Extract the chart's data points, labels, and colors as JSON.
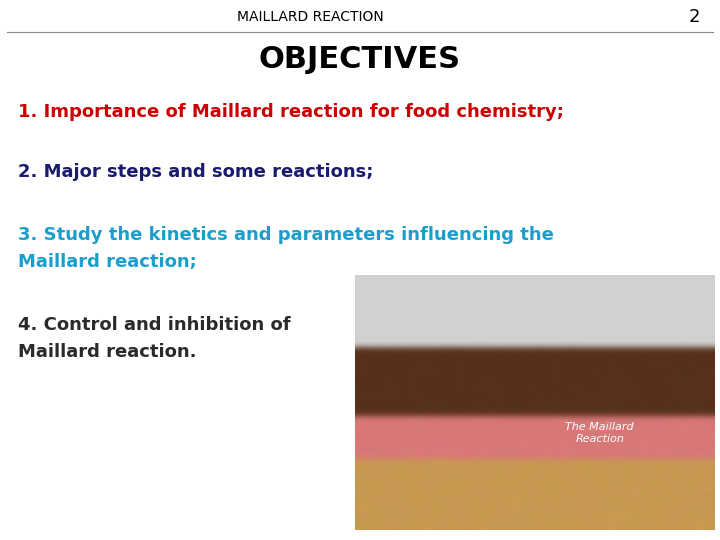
{
  "bg_color": "#ffffff",
  "header_text": "MAILLARD REACTION",
  "page_number": "2",
  "title_text": "OBJECTIVES",
  "line1": "1. Importance of Maillard reaction for food chemistry;",
  "line2": "2. Major steps and some reactions;",
  "line3a": "3. Study the kinetics and parameters influencing the",
  "line3b": "Maillard reaction;",
  "line4a": "4. Control and inhibition of",
  "line4b": "Maillard reaction.",
  "color_line1": "#cc0000",
  "color_line2": "#1a1a6e",
  "color_line3": "#1a9fcc",
  "color_line4": "#2a2a2a",
  "header_color": "#000000",
  "title_color": "#000000",
  "header_fontsize": 10,
  "title_fontsize": 22,
  "body_fontsize": 13,
  "figsize": [
    7.2,
    5.4
  ],
  "dpi": 100
}
